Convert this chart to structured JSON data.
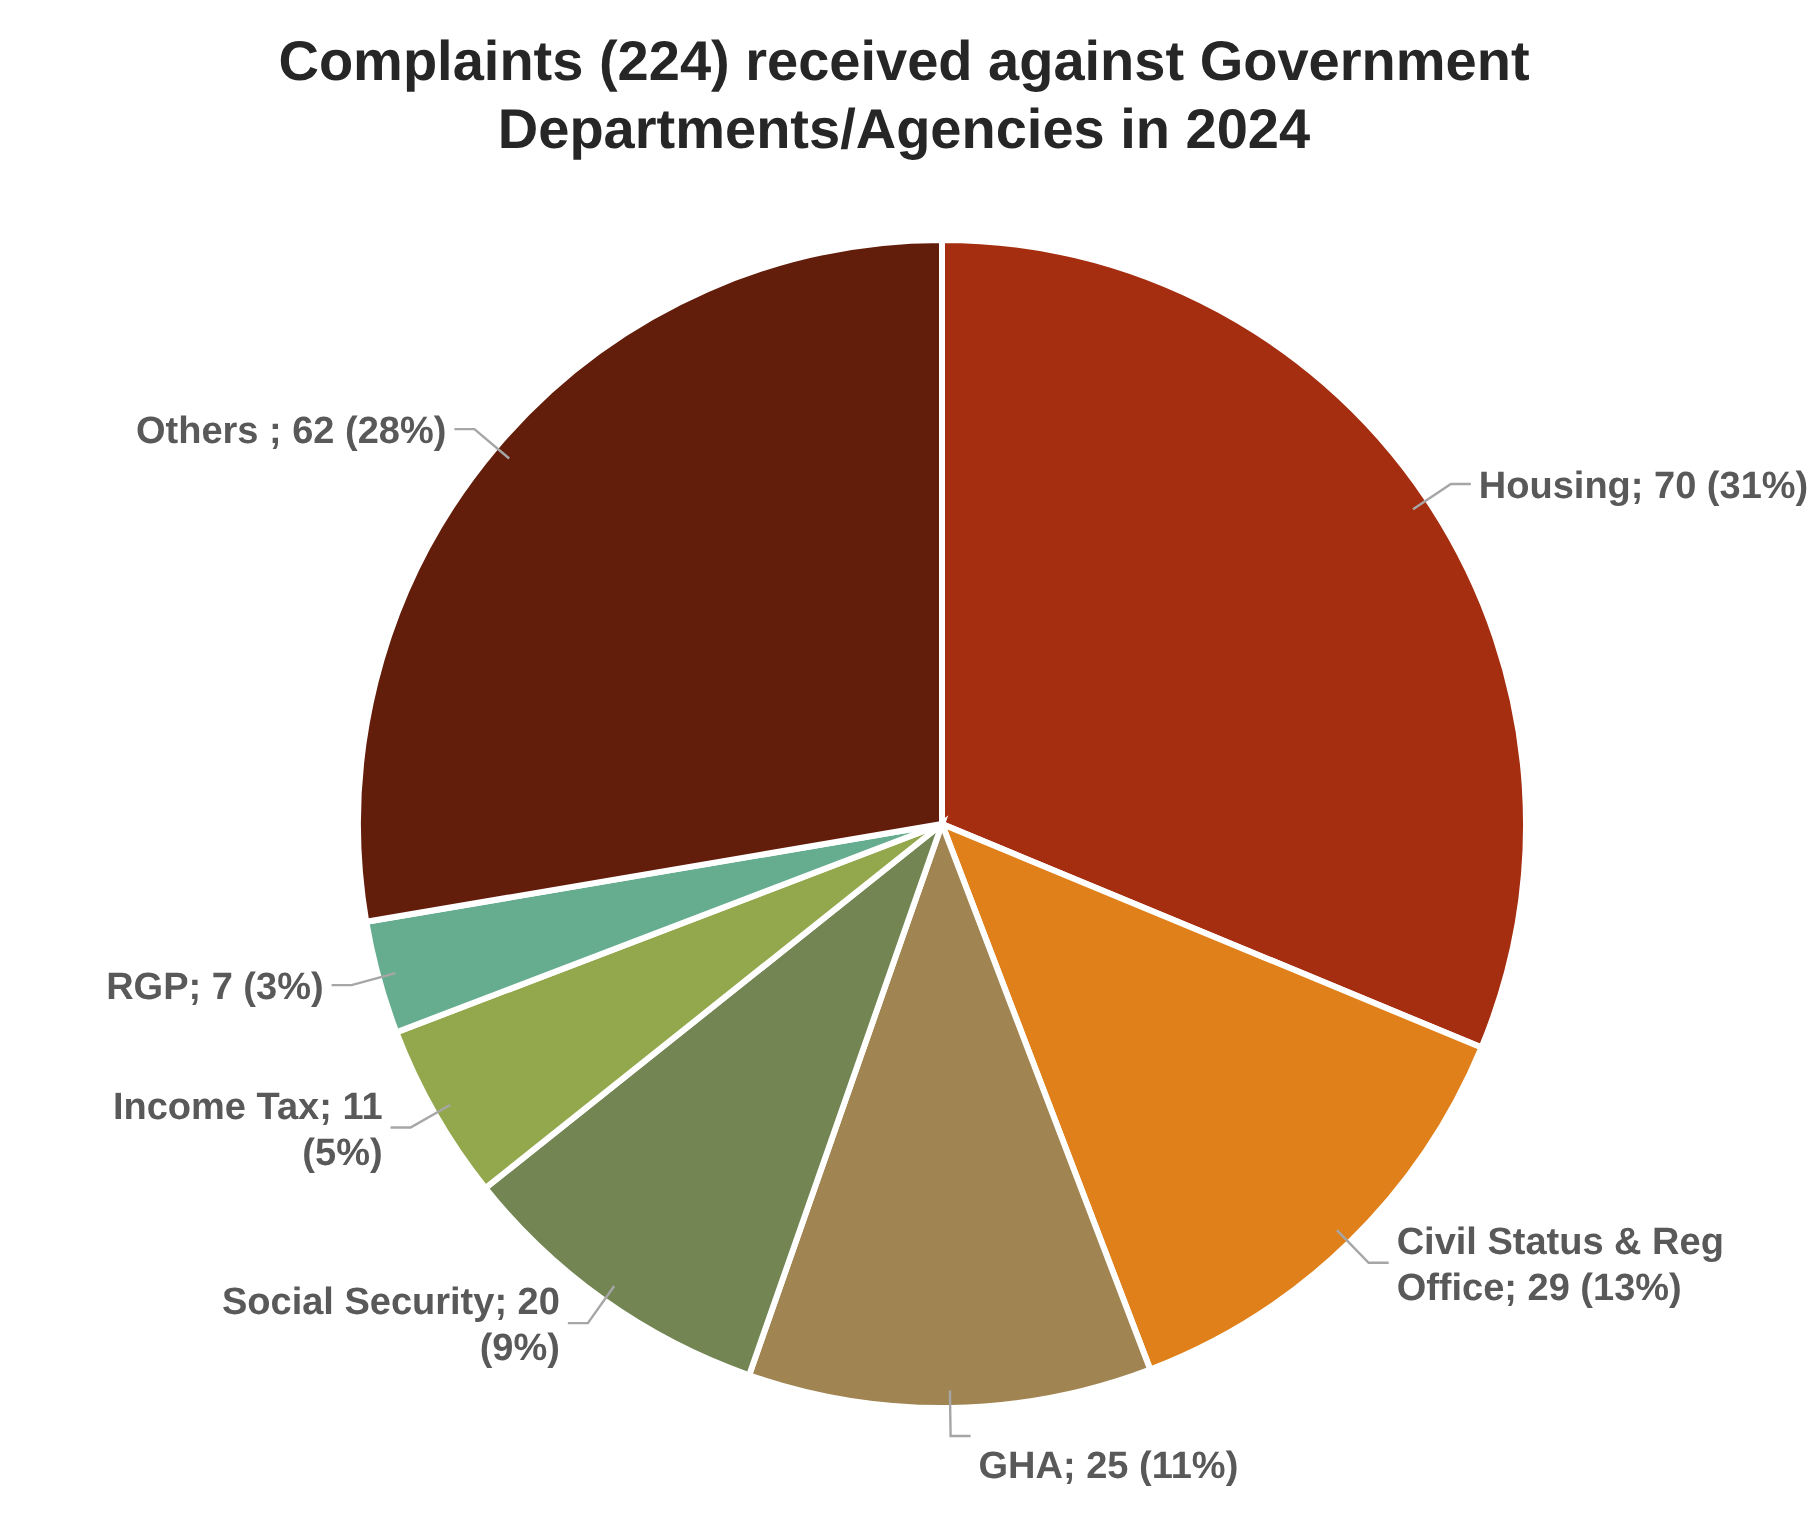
{
  "chart_data": {
    "type": "pie",
    "title": "Complaints (224) received against Government Departments/Agencies in 2024",
    "categories": [
      "Housing",
      "Civil Status & Reg Office",
      "GHA",
      "Social Security",
      "Income Tax",
      "RGP",
      "Others "
    ],
    "values": [
      70,
      29,
      25,
      20,
      11,
      7,
      62
    ],
    "value_labels": [
      "70 (31%)",
      "29 (13%)",
      "25 (11%)",
      "20 (9%)",
      "11 (5%)",
      "7 (3%)",
      "62 (28%)"
    ],
    "colors": [
      "#a52e10",
      "#e0801a",
      "#a08452",
      "#728553",
      "#93a84c",
      "#66ad90",
      "#631d0b"
    ],
    "legend": false
  }
}
